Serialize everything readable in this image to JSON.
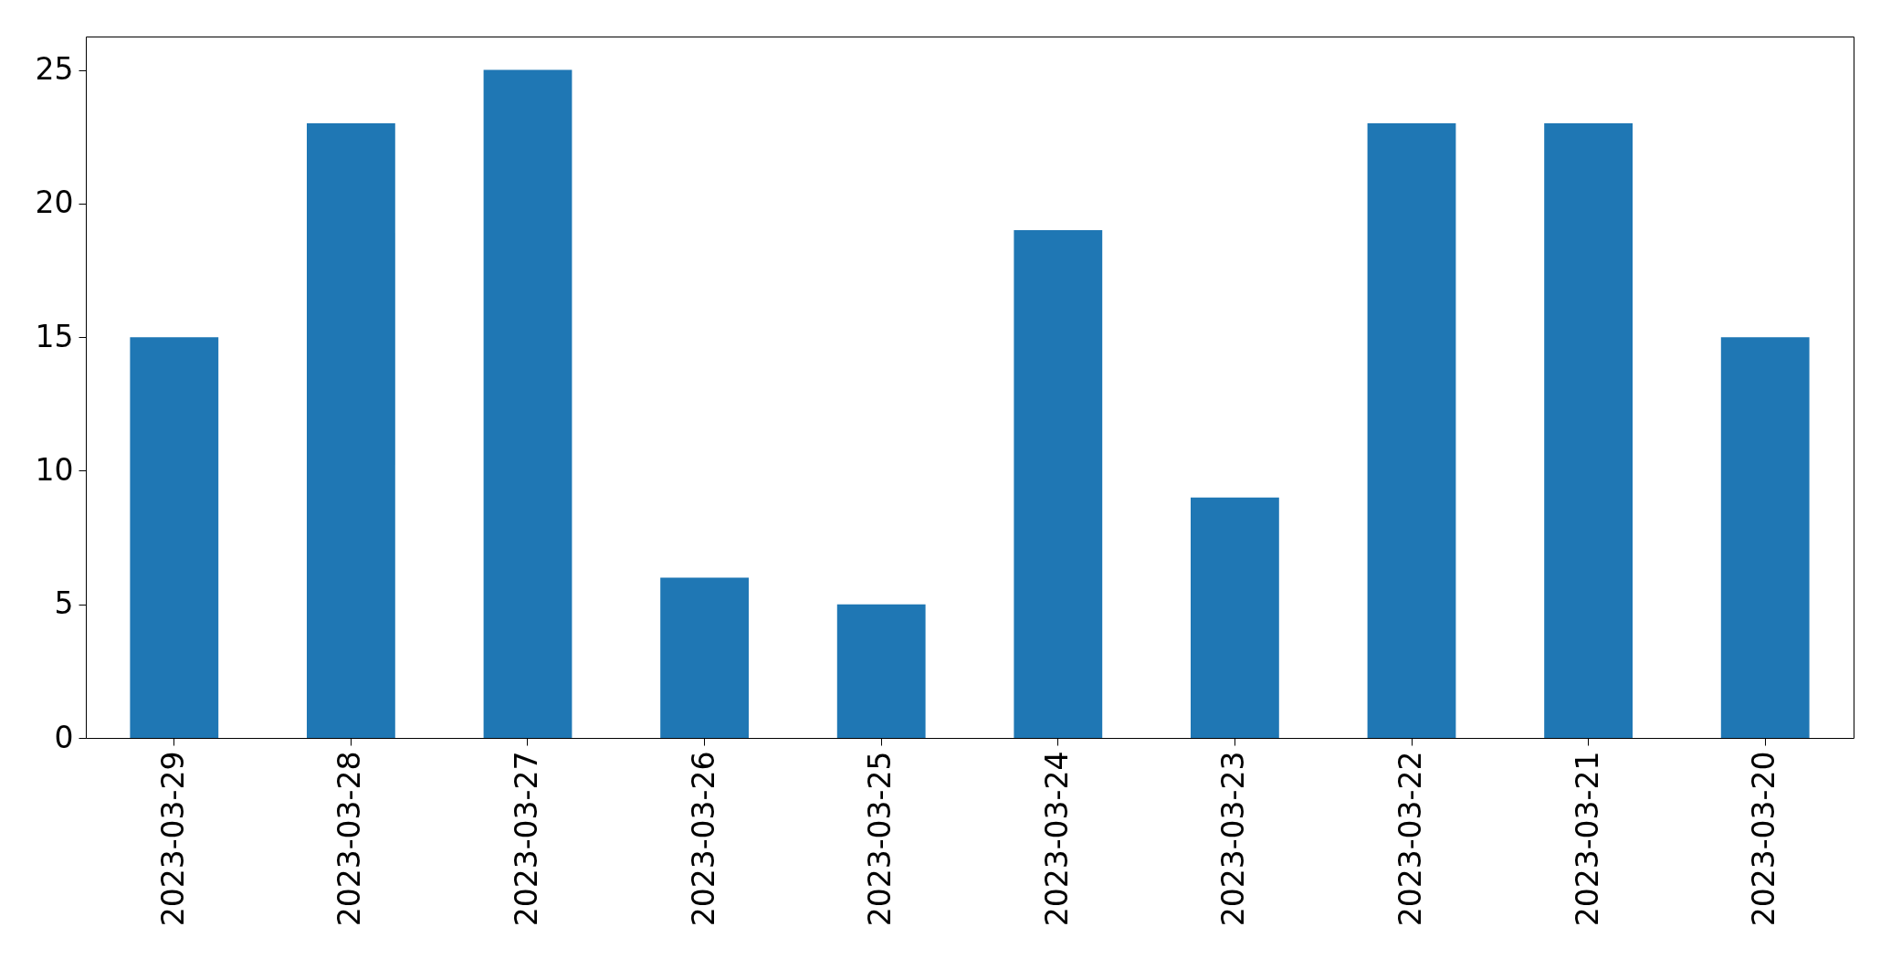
{
  "chart_data": {
    "type": "bar",
    "categories": [
      "2023-03-29",
      "2023-03-28",
      "2023-03-27",
      "2023-03-26",
      "2023-03-25",
      "2023-03-24",
      "2023-03-23",
      "2023-03-22",
      "2023-03-21",
      "2023-03-20"
    ],
    "values": [
      15,
      23,
      25,
      6,
      5,
      19,
      9,
      23,
      23,
      15
    ],
    "color": "#1f77b4",
    "ylim": [
      0,
      26.25
    ],
    "yticks": [
      0,
      5,
      10,
      15,
      20,
      25
    ],
    "grid": false
  }
}
